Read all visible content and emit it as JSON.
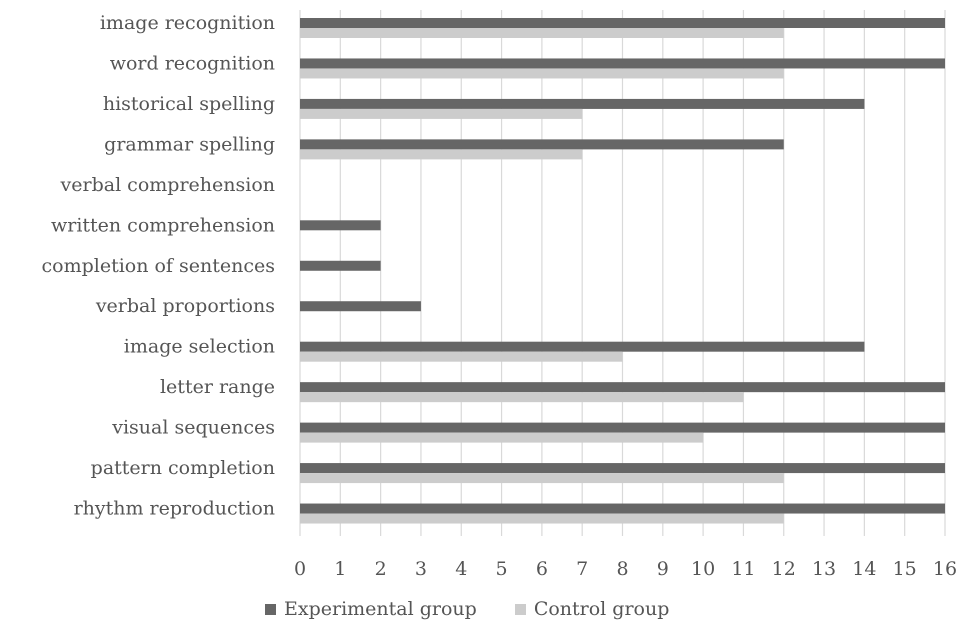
{
  "chart_data": {
    "type": "bar",
    "orientation": "horizontal",
    "categories": [
      "image recognition",
      "word recognition",
      "historical spelling",
      "grammar spelling",
      "verbal comprehension",
      "written comprehension",
      "completion of sentences",
      "verbal proportions",
      "image selection",
      "letter range",
      "visual sequences",
      "pattern completion",
      "rhythm reproduction"
    ],
    "series": [
      {
        "name": "Experimental group",
        "color": "#666666",
        "values": [
          16,
          16,
          14,
          12,
          0,
          2,
          2,
          3,
          14,
          16,
          16,
          16,
          16
        ]
      },
      {
        "name": "Control group",
        "color": "#cccccc",
        "values": [
          12,
          12,
          7,
          7,
          0,
          0,
          0,
          0,
          8,
          11,
          10,
          12,
          12
        ]
      }
    ],
    "x_ticks": [
      "0",
      "1",
      "2",
      "3",
      "4",
      "5",
      "6",
      "7",
      "8",
      "9",
      "10",
      "11",
      "12",
      "13",
      "14",
      "15",
      "16"
    ],
    "xlim": [
      0,
      16
    ],
    "grid": "vertical",
    "legend_position": "bottom"
  }
}
